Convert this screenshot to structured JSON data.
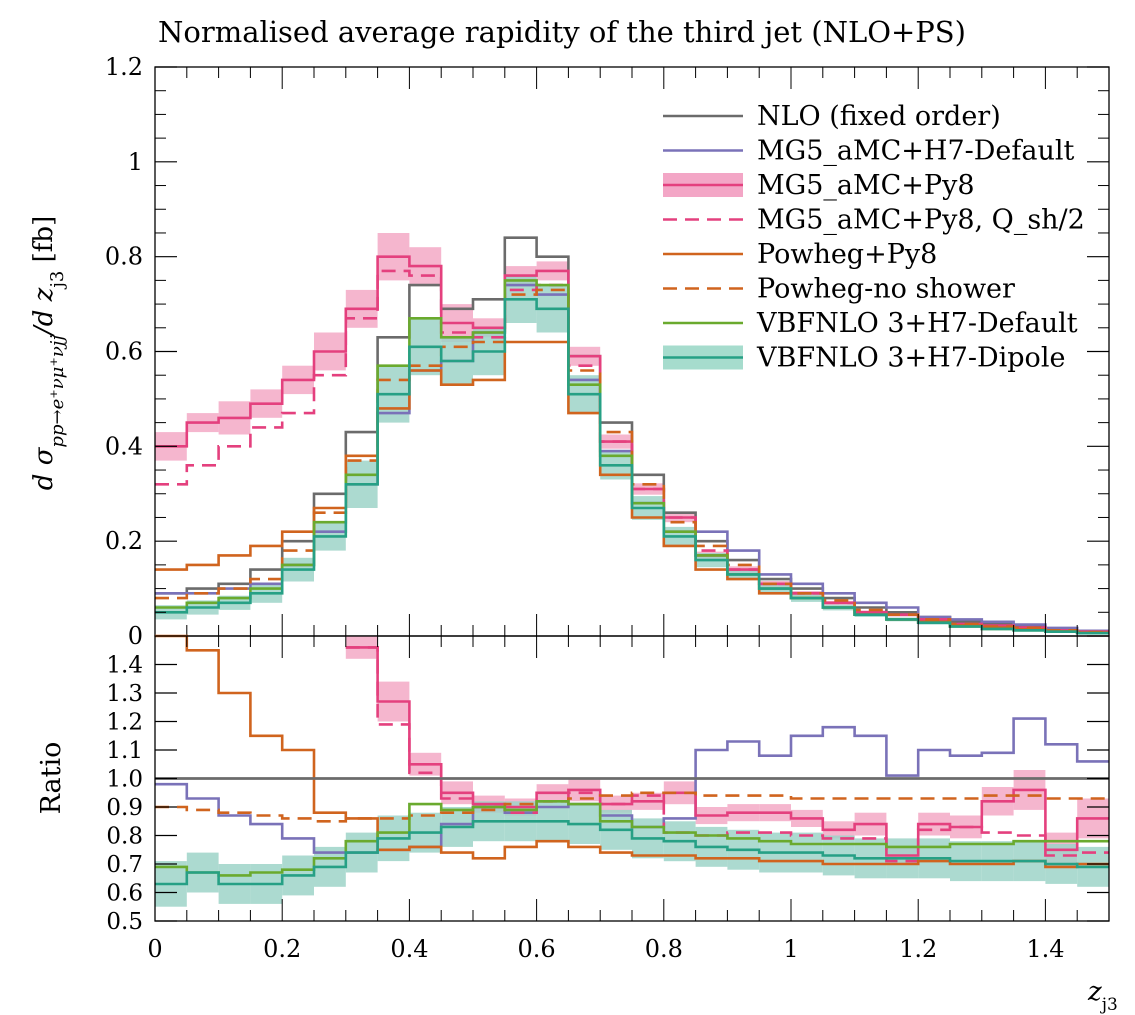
{
  "chart_data": {
    "type": "line",
    "title": "Normalised average rapidity of the third jet (NLO+PS)",
    "x_edges": [
      0,
      0.05,
      0.1,
      0.15,
      0.2,
      0.25,
      0.3,
      0.35,
      0.4,
      0.45,
      0.5,
      0.55,
      0.6,
      0.65,
      0.7,
      0.75,
      0.8,
      0.85,
      0.9,
      0.95,
      1.0,
      1.05,
      1.1,
      1.15,
      1.2,
      1.25,
      1.3,
      1.35,
      1.4,
      1.45,
      1.5
    ],
    "xlim": [
      0,
      1.5
    ],
    "xlabel": "z",
    "xlabel_sub": "j3",
    "x_ticks": [
      "0",
      "0.2",
      "0.4",
      "0.6",
      "0.8",
      "1",
      "1.2",
      "1.4"
    ],
    "main": {
      "ylabel": "d σ_{pp→e⁺νμ⁺νjj}/d z_{j3} [fb]",
      "ylabel_parts": [
        "d σ",
        "pp→e⁺νμ⁺νjj",
        "/d z",
        "j3",
        " [fb]"
      ],
      "ylim": [
        0,
        1.2
      ],
      "y_ticks": [
        "0",
        "0.2",
        "0.4",
        "0.6",
        "0.8",
        "1",
        "1.2"
      ]
    },
    "ratio": {
      "ylabel": "Ratio",
      "ylim": [
        0.5,
        1.5
      ],
      "y_ticks": [
        "0.5",
        "0.6",
        "0.7",
        "0.8",
        "0.9",
        "1.0",
        "1.1",
        "1.2",
        "1.3",
        "1.4"
      ]
    },
    "legend_position": "top-right",
    "series": [
      {
        "name": "NLO (fixed order)",
        "color": "#6b6b6b",
        "style": "solid",
        "values": [
          0.09,
          0.1,
          0.11,
          0.14,
          0.2,
          0.3,
          0.43,
          0.63,
          0.74,
          0.69,
          0.71,
          0.84,
          0.8,
          0.59,
          0.45,
          0.34,
          0.26,
          0.2,
          0.16,
          0.12,
          0.1,
          0.08,
          0.06,
          0.05,
          0.04,
          0.03,
          0.025,
          0.02,
          0.015,
          0.01
        ],
        "ratio": [
          1,
          1,
          1,
          1,
          1,
          1,
          1,
          1,
          1,
          1,
          1,
          1,
          1,
          1,
          1,
          1,
          1,
          1,
          1,
          1,
          1,
          1,
          1,
          1,
          1,
          1,
          1,
          1,
          1,
          1
        ]
      },
      {
        "name": "MG5_aMC+H7-Default",
        "color": "#7a72b8",
        "style": "solid",
        "values": [
          0.09,
          0.09,
          0.1,
          0.11,
          0.15,
          0.22,
          0.32,
          0.47,
          0.56,
          0.58,
          0.64,
          0.74,
          0.72,
          0.54,
          0.39,
          0.28,
          0.22,
          0.22,
          0.18,
          0.13,
          0.11,
          0.09,
          0.07,
          0.06,
          0.04,
          0.035,
          0.03,
          0.024,
          0.017,
          0.011
        ],
        "ratio": [
          0.98,
          0.93,
          0.87,
          0.84,
          0.79,
          0.74,
          0.74,
          0.75,
          0.76,
          0.84,
          0.9,
          0.88,
          0.9,
          0.91,
          0.87,
          0.83,
          0.86,
          1.1,
          1.13,
          1.08,
          1.15,
          1.18,
          1.15,
          1.01,
          1.1,
          1.08,
          1.09,
          1.21,
          1.12,
          1.06
        ]
      },
      {
        "name": "MG5_aMC+Py8",
        "color": "#e4407e",
        "style": "solid",
        "values": [
          0.4,
          0.45,
          0.46,
          0.49,
          0.54,
          0.6,
          0.69,
          0.8,
          0.78,
          0.66,
          0.65,
          0.76,
          0.77,
          0.59,
          0.41,
          0.31,
          0.25,
          0.17,
          0.14,
          0.11,
          0.09,
          0.07,
          0.05,
          0.045,
          0.035,
          0.025,
          0.022,
          0.018,
          0.012,
          0.009
        ],
        "ratio": [
          null,
          null,
          null,
          null,
          null,
          null,
          1.46,
          1.27,
          1.05,
          0.95,
          0.91,
          0.9,
          0.95,
          0.96,
          0.91,
          0.92,
          0.95,
          0.87,
          0.88,
          0.88,
          0.86,
          0.82,
          0.84,
          0.73,
          0.84,
          0.83,
          0.92,
          0.96,
          0.75,
          0.86
        ],
        "band_half_width": [
          0.03,
          0.02,
          0.035,
          0.03,
          0.03,
          0.04,
          0.04,
          0.05,
          0.04,
          0.04,
          0.02,
          0.02,
          0.02,
          0.02,
          0.015,
          0.012,
          0.01,
          0.008,
          0.007,
          0.006,
          0.005,
          0.004,
          0.004,
          0.004,
          0.003,
          0.003,
          0.003,
          0.003,
          0.002,
          0.002
        ],
        "ratio_band_half_width": [
          0,
          0,
          0,
          0,
          0,
          0,
          0.04,
          0.07,
          0.04,
          0.04,
          0.03,
          0.03,
          0.03,
          0.04,
          0.03,
          0.03,
          0.04,
          0.03,
          0.03,
          0.03,
          0.03,
          0.03,
          0.04,
          0.03,
          0.04,
          0.04,
          0.05,
          0.07,
          0.06,
          0.07
        ]
      },
      {
        "name": "MG5_aMC+Py8, Q_sh/2",
        "color": "#e4407e",
        "style": "dashed",
        "values": [
          0.32,
          0.36,
          0.4,
          0.44,
          0.47,
          0.55,
          0.67,
          0.77,
          0.76,
          0.64,
          0.63,
          0.73,
          0.74,
          0.57,
          0.41,
          0.31,
          0.25,
          0.18,
          0.14,
          0.11,
          0.09,
          0.07,
          0.05,
          0.045,
          0.035,
          0.025,
          0.02,
          0.018,
          0.012,
          0.008
        ],
        "ratio": [
          null,
          null,
          null,
          null,
          null,
          null,
          1.46,
          1.19,
          1.02,
          0.93,
          0.9,
          0.88,
          0.92,
          0.95,
          0.91,
          0.94,
          0.81,
          0.8,
          0.81,
          0.81,
          0.8,
          0.79,
          0.79,
          0.71,
          0.82,
          0.83,
          0.81,
          0.8,
          0.73,
          0.74
        ]
      },
      {
        "name": "Powheg+Py8",
        "color": "#d0641e",
        "style": "solid",
        "values": [
          0.14,
          0.15,
          0.17,
          0.19,
          0.22,
          0.27,
          0.38,
          0.48,
          0.56,
          0.53,
          0.54,
          0.62,
          0.62,
          0.47,
          0.34,
          0.25,
          0.19,
          0.14,
          0.12,
          0.09,
          0.08,
          0.06,
          0.045,
          0.035,
          0.03,
          0.022,
          0.018,
          0.014,
          0.01,
          0.007
        ],
        "ratio": [
          1.55,
          1.45,
          1.3,
          1.15,
          1.1,
          0.88,
          0.86,
          0.75,
          0.76,
          0.74,
          0.72,
          0.76,
          0.78,
          0.76,
          0.74,
          0.73,
          0.73,
          0.72,
          0.72,
          0.71,
          0.71,
          0.7,
          0.7,
          0.7,
          0.71,
          0.7,
          0.7,
          0.71,
          0.69,
          0.7
        ]
      },
      {
        "name": "Powheg-no shower",
        "color": "#d0641e",
        "style": "dashed",
        "values": [
          0.08,
          0.09,
          0.1,
          0.12,
          0.18,
          0.26,
          0.37,
          0.54,
          0.57,
          0.61,
          0.62,
          0.72,
          0.73,
          0.56,
          0.43,
          0.32,
          0.24,
          0.19,
          0.15,
          0.11,
          0.09,
          0.075,
          0.055,
          0.045,
          0.035,
          0.025,
          0.02,
          0.017,
          0.012,
          0.008
        ],
        "ratio": [
          0.9,
          0.89,
          0.88,
          0.87,
          0.86,
          0.85,
          0.86,
          0.86,
          0.87,
          0.88,
          0.89,
          0.91,
          0.92,
          0.93,
          0.94,
          0.95,
          0.95,
          0.94,
          0.94,
          0.94,
          0.93,
          0.93,
          0.93,
          0.93,
          0.93,
          0.93,
          0.94,
          0.94,
          0.93,
          0.93
        ]
      },
      {
        "name": "VBFNLO 3+H7-Default",
        "color": "#6aaa2e",
        "style": "solid",
        "values": [
          0.06,
          0.07,
          0.08,
          0.1,
          0.15,
          0.24,
          0.34,
          0.57,
          0.67,
          0.63,
          0.64,
          0.75,
          0.74,
          0.53,
          0.38,
          0.28,
          0.22,
          0.17,
          0.13,
          0.1,
          0.08,
          0.06,
          0.045,
          0.035,
          0.028,
          0.02,
          0.015,
          0.012,
          0.009,
          0.006
        ],
        "ratio": [
          0.69,
          0.67,
          0.66,
          0.67,
          0.68,
          0.72,
          0.78,
          0.81,
          0.91,
          0.89,
          0.9,
          0.89,
          0.92,
          0.91,
          0.85,
          0.83,
          0.81,
          0.8,
          0.79,
          0.78,
          0.77,
          0.77,
          0.77,
          0.76,
          0.76,
          0.77,
          0.77,
          0.78,
          0.78,
          0.78
        ]
      },
      {
        "name": "VBFNLO 3+H7-Dipole",
        "color": "#26a085",
        "style": "solid",
        "values": [
          0.05,
          0.06,
          0.07,
          0.09,
          0.14,
          0.21,
          0.32,
          0.51,
          0.61,
          0.58,
          0.6,
          0.71,
          0.69,
          0.51,
          0.36,
          0.27,
          0.21,
          0.16,
          0.13,
          0.1,
          0.08,
          0.06,
          0.045,
          0.035,
          0.028,
          0.02,
          0.015,
          0.012,
          0.009,
          0.006
        ],
        "ratio": [
          0.63,
          0.67,
          0.63,
          0.63,
          0.66,
          0.69,
          0.74,
          0.79,
          0.81,
          0.83,
          0.85,
          0.85,
          0.85,
          0.84,
          0.82,
          0.79,
          0.78,
          0.76,
          0.75,
          0.74,
          0.74,
          0.73,
          0.72,
          0.72,
          0.72,
          0.71,
          0.71,
          0.71,
          0.7,
          0.69
        ],
        "band_half_width": [
          0.015,
          0.015,
          0.015,
          0.02,
          0.025,
          0.03,
          0.05,
          0.06,
          0.06,
          0.05,
          0.05,
          0.05,
          0.05,
          0.04,
          0.03,
          0.025,
          0.02,
          0.015,
          0.012,
          0.01,
          0.008,
          0.006,
          0.005,
          0.004,
          0.004,
          0.003,
          0.003,
          0.003,
          0.002,
          0.002
        ],
        "ratio_band_half_width": [
          0.08,
          0.07,
          0.07,
          0.07,
          0.07,
          0.07,
          0.07,
          0.08,
          0.07,
          0.07,
          0.07,
          0.07,
          0.07,
          0.07,
          0.07,
          0.07,
          0.07,
          0.07,
          0.07,
          0.07,
          0.07,
          0.07,
          0.07,
          0.07,
          0.07,
          0.07,
          0.07,
          0.07,
          0.07,
          0.07
        ]
      }
    ],
    "legend": [
      {
        "label": "NLO (fixed order)",
        "color": "#6b6b6b",
        "style": "solid",
        "band": false
      },
      {
        "label": "MG5_aMC+H7-Default",
        "color": "#7a72b8",
        "style": "solid",
        "band": false
      },
      {
        "label": "MG5_aMC+Py8",
        "color": "#e4407e",
        "style": "solid",
        "band": true,
        "band_color": "#f3a6c6"
      },
      {
        "label": "MG5_aMC+Py8, Q_sh/2",
        "color": "#e4407e",
        "style": "dashed",
        "band": false
      },
      {
        "label": "Powheg+Py8",
        "color": "#d0641e",
        "style": "solid",
        "band": false
      },
      {
        "label": "Powheg-no shower",
        "color": "#d0641e",
        "style": "dashed",
        "band": false
      },
      {
        "label": "VBFNLO 3+H7-Default",
        "color": "#6aaa2e",
        "style": "solid",
        "band": false
      },
      {
        "label": "VBFNLO 3+H7-Dipole",
        "color": "#26a085",
        "style": "solid",
        "band": true,
        "band_color": "#a6dccd"
      }
    ]
  }
}
